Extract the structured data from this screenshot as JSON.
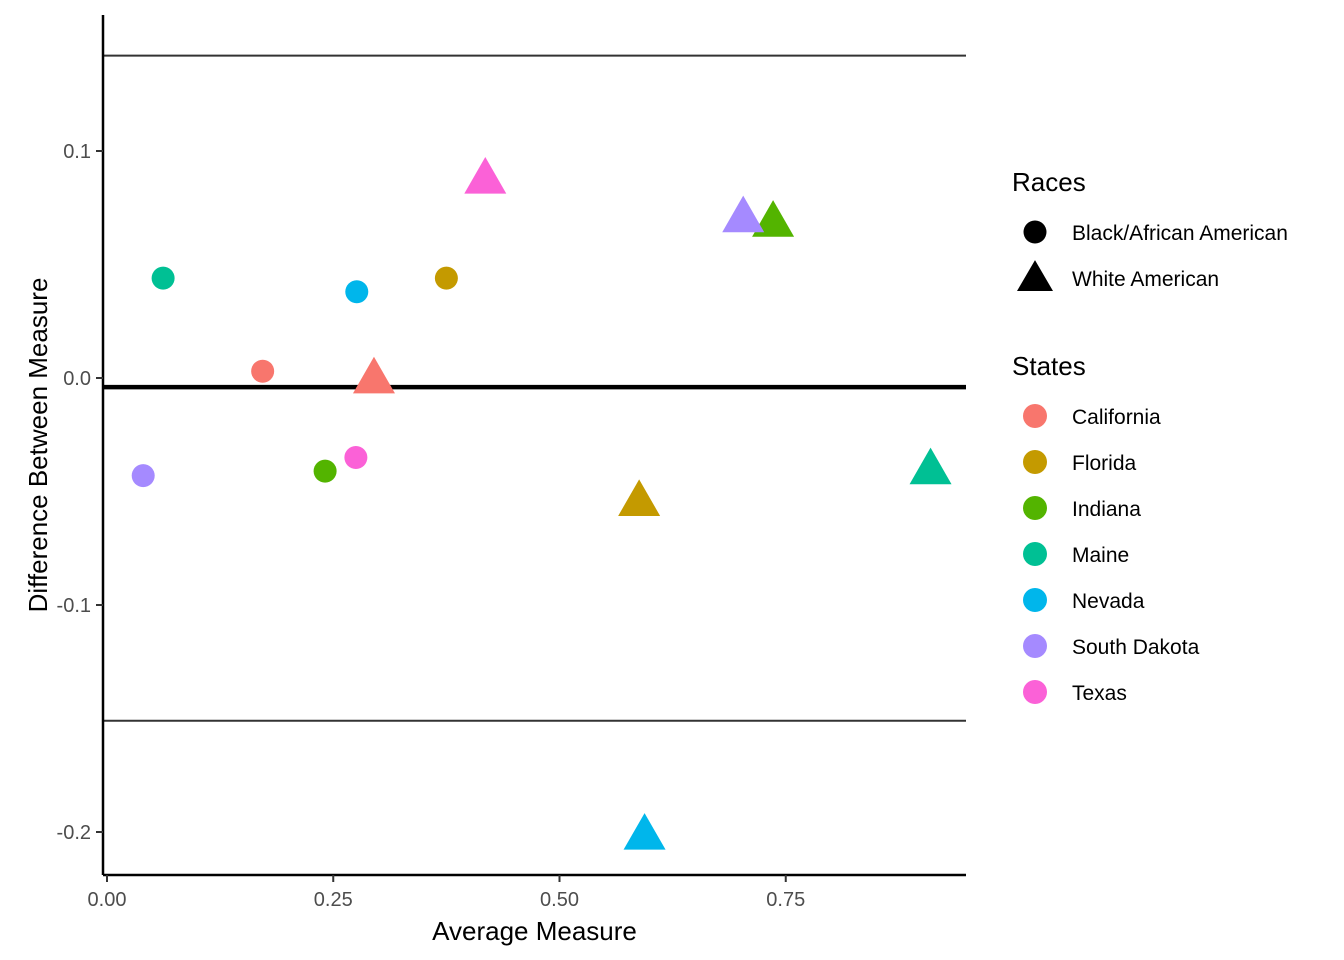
{
  "chart_data": {
    "type": "scatter",
    "xlabel": "Average Measure",
    "ylabel": "Difference Between Measure",
    "xlim": [
      -0.005,
      0.95
    ],
    "ylim": [
      -0.22,
      0.16
    ],
    "x_ticks": [
      0.0,
      0.25,
      0.5,
      0.75
    ],
    "x_tick_labels": [
      "0.00",
      "0.25",
      "0.50",
      "0.75"
    ],
    "y_ticks": [
      0.1,
      0.0,
      -0.1,
      -0.2
    ],
    "y_tick_labels": [
      "0.1",
      "0.0",
      "-0.1",
      "-0.2"
    ],
    "grid": false,
    "reference_lines": [
      {
        "y": 0.142,
        "style": "thin"
      },
      {
        "y": -0.004,
        "style": "thick"
      },
      {
        "y": -0.151,
        "style": "thin"
      }
    ],
    "legend_position": "right",
    "legends": [
      {
        "title": "Races",
        "entries": [
          {
            "label": "Black/African American",
            "shape": "circle"
          },
          {
            "label": "White American",
            "shape": "triangle"
          }
        ]
      },
      {
        "title": "States",
        "entries": [
          {
            "label": "California",
            "color": "#F8766D"
          },
          {
            "label": "Florida",
            "color": "#C49A00"
          },
          {
            "label": "Indiana",
            "color": "#53B400"
          },
          {
            "label": "Maine",
            "color": "#00C094"
          },
          {
            "label": "Nevada",
            "color": "#00B6EB"
          },
          {
            "label": "South Dakota",
            "color": "#A58AFF"
          },
          {
            "label": "Texas",
            "color": "#FB61D7"
          }
        ]
      }
    ],
    "points": [
      {
        "state": "California",
        "race": "Black/African American",
        "x": 0.172,
        "y": 0.003
      },
      {
        "state": "California",
        "race": "White American",
        "x": 0.295,
        "y": 0.0
      },
      {
        "state": "Florida",
        "race": "Black/African American",
        "x": 0.375,
        "y": 0.044
      },
      {
        "state": "Florida",
        "race": "White American",
        "x": 0.588,
        "y": -0.054
      },
      {
        "state": "Indiana",
        "race": "Black/African American",
        "x": 0.241,
        "y": -0.041
      },
      {
        "state": "Indiana",
        "race": "White American",
        "x": 0.736,
        "y": 0.069
      },
      {
        "state": "Maine",
        "race": "Black/African American",
        "x": 0.062,
        "y": 0.044
      },
      {
        "state": "Maine",
        "race": "White American",
        "x": 0.91,
        "y": -0.04
      },
      {
        "state": "Nevada",
        "race": "Black/African American",
        "x": 0.276,
        "y": 0.038
      },
      {
        "state": "Nevada",
        "race": "White American",
        "x": 0.594,
        "y": -0.201
      },
      {
        "state": "South Dakota",
        "race": "Black/African American",
        "x": 0.04,
        "y": -0.043
      },
      {
        "state": "South Dakota",
        "race": "White American",
        "x": 0.703,
        "y": 0.071
      },
      {
        "state": "Texas",
        "race": "Black/African American",
        "x": 0.275,
        "y": -0.035
      },
      {
        "state": "Texas",
        "race": "White American",
        "x": 0.418,
        "y": 0.088
      }
    ]
  }
}
